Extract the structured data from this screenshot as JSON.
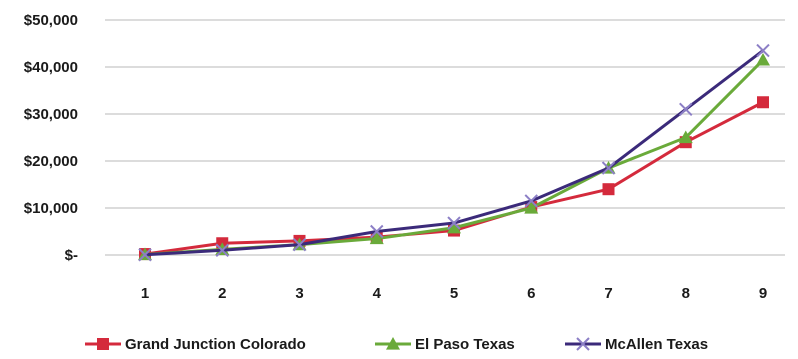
{
  "chart_data": {
    "type": "line",
    "title": "",
    "xlabel": "",
    "ylabel": "",
    "x": [
      1,
      2,
      3,
      4,
      5,
      6,
      7,
      8,
      9
    ],
    "x_tick_labels": [
      "1",
      "2",
      "3",
      "4",
      "5",
      "6",
      "7",
      "8",
      "9"
    ],
    "ylim": [
      0,
      50000
    ],
    "y_ticks": [
      0,
      10000,
      20000,
      30000,
      40000,
      50000
    ],
    "y_tick_labels": [
      "$-",
      "$10,000",
      "$20,000",
      "$30,000",
      "$40,000",
      "$50,000"
    ],
    "grid": "horizontal",
    "legend_position": "bottom",
    "series": [
      {
        "name": "Grand Junction Colorado",
        "color": "#d42a3c",
        "marker": "square",
        "values": [
          200,
          2500,
          3000,
          3800,
          5200,
          10200,
          14000,
          24000,
          32500
        ]
      },
      {
        "name": "El Paso Texas",
        "color": "#6aaa3a",
        "marker": "triangle",
        "values": [
          100,
          1200,
          2200,
          3500,
          5800,
          10000,
          18500,
          25000,
          41500
        ]
      },
      {
        "name": "McAllen Texas",
        "color": "#3b2a7a",
        "marker": "x",
        "values": [
          50,
          1000,
          2200,
          5000,
          6800,
          11500,
          18500,
          31000,
          43500
        ]
      }
    ]
  }
}
